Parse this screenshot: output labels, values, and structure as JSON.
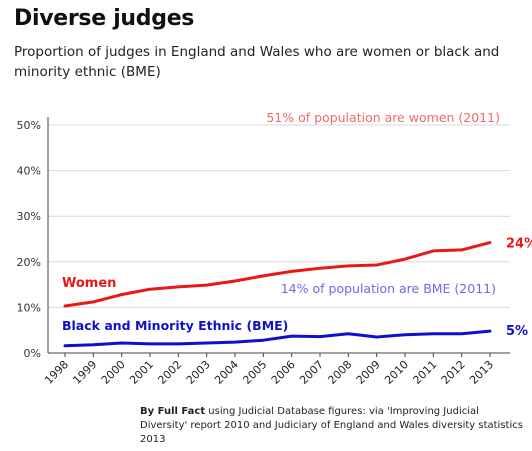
{
  "header": {
    "title": "Diverse judges",
    "subtitle": "Proportion of judges in England and Wales who are women or black and minority ethnic (BME)"
  },
  "source": {
    "bold": "By Full Fact",
    "text": " using Judicial Database figures: via 'Improving Judicial Diversity' report 2010 and Judiciary of England and Wales diversity statistics 2013"
  },
  "colors": {
    "women": "#e81818",
    "bme": "#1010cc",
    "women_ref": "#f06a6a",
    "bme_ref": "#6a6ae6",
    "grid": "#d9d9d9",
    "axis": "#444444"
  },
  "chart_data": {
    "type": "line",
    "title": "Diverse judges",
    "x": [
      "1998",
      "1999",
      "2000",
      "2001",
      "2002",
      "2003",
      "2004",
      "2005",
      "2006",
      "2007",
      "2008",
      "2009",
      "2010",
      "2011",
      "2012",
      "2013"
    ],
    "ylim": [
      0,
      50
    ],
    "yticks": [
      0,
      10,
      20,
      30,
      40,
      50
    ],
    "ytick_labels": [
      "0%",
      "10%",
      "20%",
      "30%",
      "40%",
      "50%"
    ],
    "grid": true,
    "series": [
      {
        "name": "Women",
        "values": [
          10.3,
          11.2,
          12.8,
          14.0,
          14.5,
          14.9,
          15.8,
          16.9,
          17.9,
          18.6,
          19.1,
          19.3,
          20.6,
          22.4,
          22.6,
          24.2
        ],
        "end_label": "24%"
      },
      {
        "name": "Black and Minority Ethnic (BME)",
        "values": [
          1.6,
          1.8,
          2.2,
          2.0,
          2.0,
          2.2,
          2.4,
          2.8,
          3.7,
          3.6,
          4.2,
          3.5,
          4.0,
          4.2,
          4.2,
          4.8
        ],
        "end_label": "5%"
      }
    ],
    "annotations": [
      {
        "text": "51% of population are women (2011)"
      },
      {
        "text": "14% of population are BME (2011)"
      }
    ]
  }
}
